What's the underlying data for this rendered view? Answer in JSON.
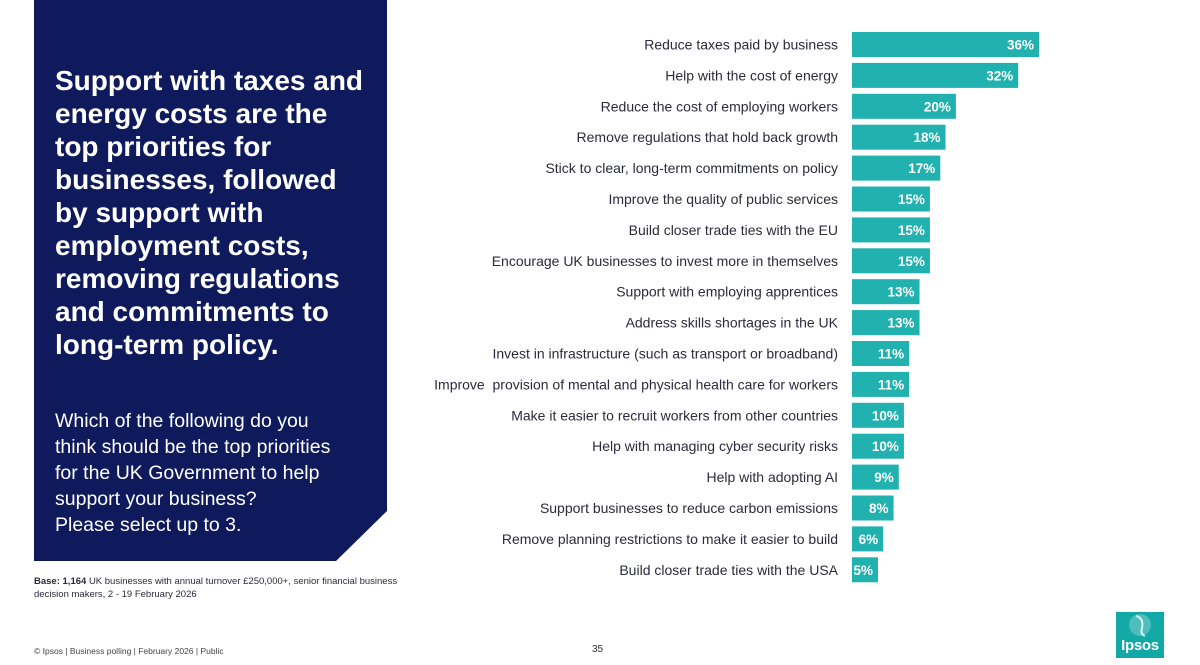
{
  "headline": "Support with taxes and energy costs are the top priorities for businesses, followed by support with employment costs, removing regulations and commitments to long-term policy.",
  "question": "Which of the following do you think should be the top priorities for the UK Government to help support your business?\nPlease select up to 3.",
  "base_note": {
    "label": "Base:",
    "count": "1,164",
    "text": "UK businesses with annual turnover £250,000+, senior financial business decision makers, 2 - 19 February 2026"
  },
  "footer": "© Ipsos | Business polling | February 2026 | Public",
  "page_number": "35",
  "logo_text": "Ipsos",
  "colors": {
    "panel": "#0e1a5c",
    "bar": "#21b1ae",
    "logo": "#12a8a5"
  },
  "chart_data": {
    "type": "bar",
    "orientation": "horizontal",
    "categories": [
      "Reduce taxes paid by business",
      "Help with the cost of energy",
      "Reduce the cost of employing workers",
      "Remove regulations that hold back growth",
      "Stick to clear, long-term commitments on policy",
      "Improve the quality of public services",
      "Build closer trade ties with the EU",
      "Encourage UK businesses to invest more in themselves",
      "Support with employing apprentices",
      "Address skills shortages in the UK",
      "Invest in infrastructure (such as transport or broadband)",
      "Improve  provision of mental and physical health care for workers",
      "Make it easier to recruit workers from other countries",
      "Help with managing cyber security risks",
      "Help with adopting AI",
      "Support businesses to reduce carbon emissions",
      "Remove planning restrictions to make it easier to build",
      "Build closer trade ties with the USA"
    ],
    "values": [
      36,
      32,
      20,
      18,
      17,
      15,
      15,
      15,
      13,
      13,
      11,
      11,
      10,
      10,
      9,
      8,
      6,
      5
    ],
    "value_labels": [
      "36%",
      "32%",
      "20%",
      "18%",
      "17%",
      "15%",
      "15%",
      "15%",
      "13%",
      "13%",
      "11%",
      "11%",
      "10%",
      "10%",
      "9%",
      "8%",
      "6%",
      "5%"
    ],
    "unit": "%",
    "xlim": [
      0,
      36
    ],
    "grid": false,
    "legend": "none"
  }
}
